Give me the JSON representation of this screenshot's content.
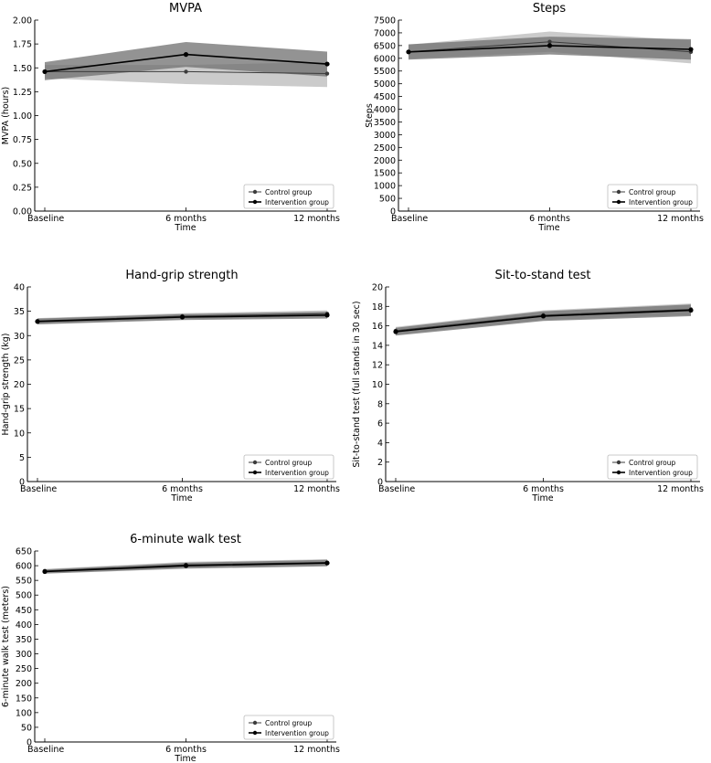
{
  "chart_data": [
    {
      "type": "line",
      "title": "MVPA",
      "xlabel": "Time",
      "ylabel": "MVPA (hours)",
      "categories": [
        "Baseline",
        "6 months",
        "12 months"
      ],
      "ylim": [
        0,
        2.0
      ],
      "yticks": [
        0,
        0.25,
        0.5,
        0.75,
        1.0,
        1.25,
        1.5,
        1.75,
        2.0
      ],
      "ytick_labels": [
        "0.00",
        "0.25",
        "0.50",
        "0.75",
        "1.00",
        "1.25",
        "1.50",
        "1.75",
        "2.00"
      ],
      "legend_position": "bottom-right",
      "series": [
        {
          "name": "Control group",
          "values": [
            1.46,
            1.46,
            1.44
          ],
          "lower": [
            1.39,
            1.33,
            1.3
          ],
          "upper": [
            1.53,
            1.53,
            1.56
          ]
        },
        {
          "name": "Intervention group",
          "values": [
            1.46,
            1.64,
            1.54
          ],
          "lower": [
            1.37,
            1.51,
            1.41
          ],
          "upper": [
            1.56,
            1.77,
            1.67
          ]
        }
      ]
    },
    {
      "type": "line",
      "title": "Steps",
      "xlabel": "Time",
      "ylabel": "Steps",
      "categories": [
        "Baseline",
        "6 months",
        "12 months"
      ],
      "ylim": [
        0,
        7500
      ],
      "yticks": [
        0,
        500,
        1000,
        1500,
        2000,
        2500,
        3000,
        3500,
        4000,
        4500,
        5000,
        5500,
        6000,
        6500,
        7000,
        7500
      ],
      "ytick_labels": [
        "0",
        "500",
        "1000",
        "1500",
        "2000",
        "2500",
        "3000",
        "3500",
        "4000",
        "4500",
        "5000",
        "5500",
        "6000",
        "6500",
        "7000",
        "7500"
      ],
      "legend_position": "bottom-right",
      "series": [
        {
          "name": "Control group",
          "values": [
            6250,
            6650,
            6250
          ],
          "lower": [
            5980,
            6250,
            5800
          ],
          "upper": [
            6530,
            7050,
            6700
          ]
        },
        {
          "name": "Intervention group",
          "values": [
            6250,
            6500,
            6350
          ],
          "lower": [
            5950,
            6150,
            5950
          ],
          "upper": [
            6550,
            6850,
            6750
          ]
        }
      ]
    },
    {
      "type": "line",
      "title": "Hand-grip strength",
      "xlabel": "Time",
      "ylabel": "Hand-grip strength (kg)",
      "categories": [
        "Baseline",
        "6 months",
        "12 months"
      ],
      "ylim": [
        0,
        40
      ],
      "yticks": [
        0,
        5,
        10,
        15,
        20,
        25,
        30,
        35,
        40
      ],
      "ytick_labels": [
        "0",
        "5",
        "10",
        "15",
        "20",
        "25",
        "30",
        "35",
        "40"
      ],
      "legend_position": "bottom-right",
      "series": [
        {
          "name": "Control group",
          "values": [
            33.0,
            34.0,
            34.5
          ],
          "lower": [
            32.4,
            33.4,
            33.8
          ],
          "upper": [
            33.6,
            34.6,
            35.2
          ]
        },
        {
          "name": "Intervention group",
          "values": [
            32.9,
            33.8,
            34.2
          ],
          "lower": [
            32.3,
            33.2,
            33.5
          ],
          "upper": [
            33.5,
            34.4,
            34.9
          ]
        }
      ]
    },
    {
      "type": "line",
      "title": "Sit-to-stand test",
      "xlabel": "Time",
      "ylabel": "Sit-to-stand test (full stands in 30 sec)",
      "categories": [
        "Baseline",
        "6 months",
        "12 months"
      ],
      "ylim": [
        0,
        20
      ],
      "yticks": [
        0,
        2,
        4,
        6,
        8,
        10,
        12,
        14,
        16,
        18,
        20
      ],
      "ytick_labels": [
        "0",
        "2",
        "4",
        "6",
        "8",
        "10",
        "12",
        "14",
        "16",
        "18",
        "20"
      ],
      "legend_position": "bottom-right",
      "series": [
        {
          "name": "Control group",
          "values": [
            15.5,
            17.1,
            17.7
          ],
          "lower": [
            15.1,
            16.6,
            17.1
          ],
          "upper": [
            15.9,
            17.6,
            18.3
          ]
        },
        {
          "name": "Intervention group",
          "values": [
            15.4,
            17.0,
            17.6
          ],
          "lower": [
            15.0,
            16.5,
            17.0
          ],
          "upper": [
            15.8,
            17.5,
            18.2
          ]
        }
      ]
    },
    {
      "type": "line",
      "title": "6-minute walk test",
      "xlabel": "Time",
      "ylabel": "6-minute walk test (meters)",
      "categories": [
        "Baseline",
        "6 months",
        "12 months"
      ],
      "ylim": [
        0,
        650
      ],
      "yticks": [
        0,
        50,
        100,
        150,
        200,
        250,
        300,
        350,
        400,
        450,
        500,
        550,
        600,
        650
      ],
      "ytick_labels": [
        "0",
        "50",
        "100",
        "150",
        "200",
        "250",
        "300",
        "350",
        "400",
        "450",
        "500",
        "550",
        "600",
        "650"
      ],
      "legend_position": "bottom-right",
      "series": [
        {
          "name": "Control group",
          "values": [
            582,
            603,
            611
          ],
          "lower": [
            575,
            593,
            600
          ],
          "upper": [
            589,
            613,
            622
          ]
        },
        {
          "name": "Intervention group",
          "values": [
            580,
            600,
            609
          ],
          "lower": [
            573,
            590,
            598
          ],
          "upper": [
            587,
            610,
            620
          ]
        }
      ]
    }
  ],
  "colors": {
    "control_line": "#3c3c3c",
    "intervention_line": "#000000",
    "control_band": "#a9a9a9",
    "intervention_band": "#6f6f6f"
  }
}
